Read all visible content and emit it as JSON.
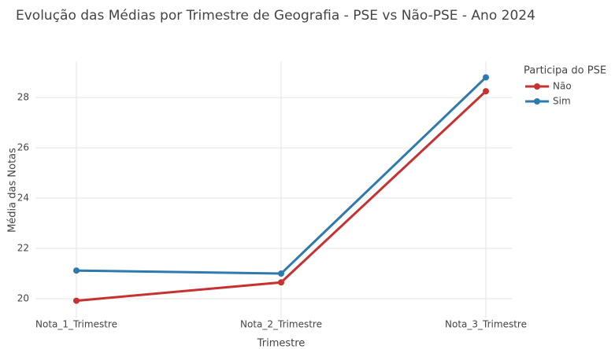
{
  "chart_data": {
    "type": "line",
    "title": "Evolução das Médias por Trimestre de Geografia - PSE vs Não-PSE - Ano 2024",
    "x_label": "Trimestre",
    "y_label": "Média das Notas",
    "categories": [
      "Nota_1_Trimestre",
      "Nota_2_Trimestre",
      "Nota_3_Trimestre"
    ],
    "series": [
      {
        "name": "Não",
        "color": "#c63131",
        "values": [
          19.92,
          20.65,
          28.25
        ]
      },
      {
        "name": "Sim",
        "color": "#2e79ad",
        "values": [
          21.12,
          21.0,
          28.8
        ]
      }
    ],
    "legend_title": "Participa do PSE",
    "legend": "top-right",
    "ylim": [
      19.22,
      29.44
    ],
    "yticks": [
      20,
      22,
      24,
      26,
      28
    ],
    "grid": true
  }
}
